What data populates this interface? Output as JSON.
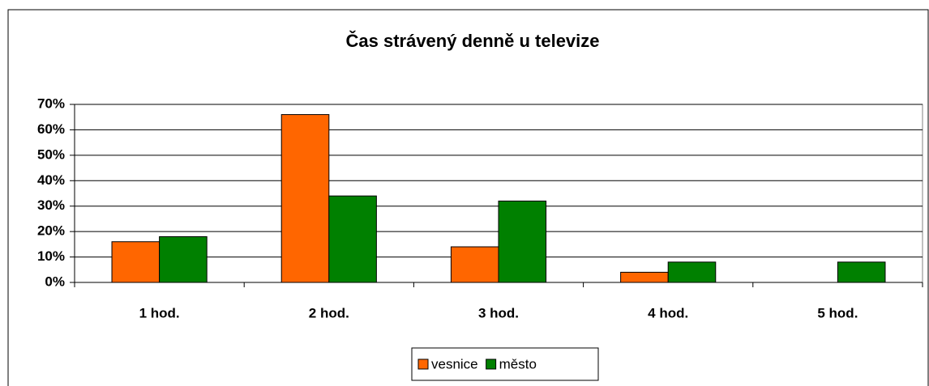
{
  "chart_data": {
    "type": "bar",
    "title": "Čas strávený denně u televize",
    "categories": [
      "1 hod.",
      "2 hod.",
      "3 hod.",
      "4 hod.",
      "5 hod."
    ],
    "series": [
      {
        "name": "vesnice",
        "color": "#ff6600",
        "values": [
          16,
          66,
          14,
          4,
          0
        ]
      },
      {
        "name": "město",
        "color": "#008000",
        "values": [
          18,
          34,
          32,
          8,
          8
        ]
      }
    ],
    "ylim": [
      0,
      70
    ],
    "yticks": [
      {
        "value": 0,
        "label": "0%"
      },
      {
        "value": 10,
        "label": "10%"
      },
      {
        "value": 20,
        "label": "20%"
      },
      {
        "value": 30,
        "label": "30%"
      },
      {
        "value": 40,
        "label": "40%"
      },
      {
        "value": 50,
        "label": "50%"
      },
      {
        "value": 60,
        "label": "60%"
      },
      {
        "value": 70,
        "label": "70%"
      }
    ],
    "grid": true,
    "legend": "bottom"
  }
}
